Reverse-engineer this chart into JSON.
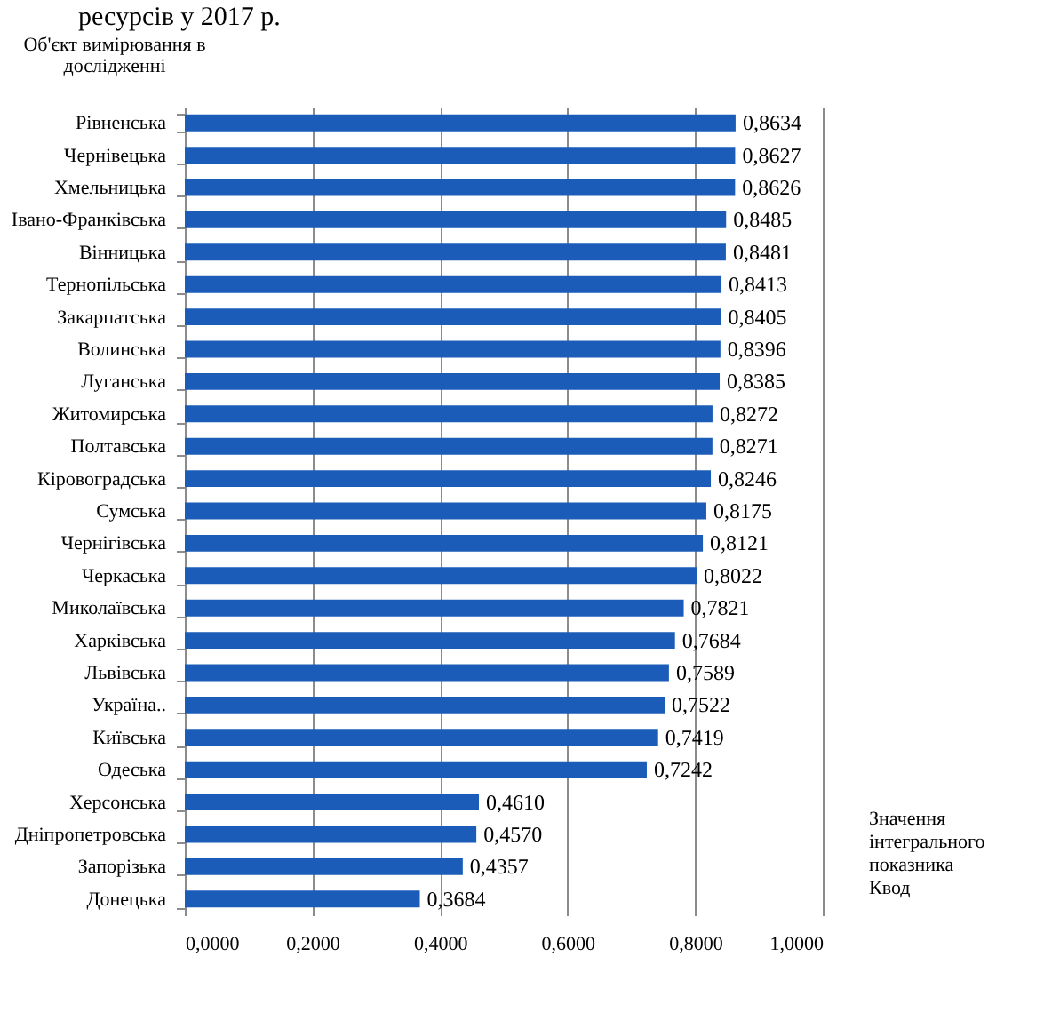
{
  "chart_data": {
    "type": "bar",
    "orientation": "horizontal",
    "title": "ресурсів у 2017 р.",
    "ylabel": "Об'єкт вимірювання в\nдослідженні",
    "xlabel": "Значення\nінтегрального\nпоказника\nКвод",
    "categories": [
      "Рівненська",
      "Чернівецька",
      "Хмельницька",
      "Івано-Франківська",
      "Вінницька",
      "Тернопільська",
      "Закарпатська",
      "Волинська",
      "Луганська",
      "Житомирська",
      "Полтавська",
      "Кіровоградська",
      "Сумська",
      "Чернігівська",
      "Черкаська",
      "Миколаївська",
      "Харківська",
      "Львівська",
      "Україна..",
      "Київська",
      "Одеська",
      "Херсонська",
      "Дніпропетровська",
      "Запорізька",
      "Донецька"
    ],
    "values": [
      0.8634,
      0.8627,
      0.8626,
      0.8485,
      0.8481,
      0.8413,
      0.8405,
      0.8396,
      0.8385,
      0.8272,
      0.8271,
      0.8246,
      0.8175,
      0.8121,
      0.8022,
      0.7821,
      0.7684,
      0.7589,
      0.7522,
      0.7419,
      0.7242,
      0.461,
      0.457,
      0.4357,
      0.3684
    ],
    "value_labels": [
      "0,8634",
      "0,8627",
      "0,8626",
      "0,8485",
      "0,8481",
      "0,8413",
      "0,8405",
      "0,8396",
      "0,8385",
      "0,8272",
      "0,8271",
      "0,8246",
      "0,8175",
      "0,8121",
      "0,8022",
      "0,7821",
      "0,7684",
      "0,7589",
      "0,7522",
      "0,7419",
      "0,7242",
      "0,4610",
      "0,4570",
      "0,4357",
      "0,3684"
    ],
    "color": "#1a5cb8",
    "xlim": [
      0,
      1
    ],
    "xticks": [
      {
        "value": 0,
        "label": "0,0000"
      },
      {
        "value": 0.2,
        "label": "0,2000"
      },
      {
        "value": 0.4,
        "label": "0,4000"
      },
      {
        "value": 0.6,
        "label": "0,6000"
      },
      {
        "value": 0.8,
        "label": "0,8000"
      },
      {
        "value": 1,
        "label": "1,0000"
      }
    ],
    "grid": "x"
  }
}
